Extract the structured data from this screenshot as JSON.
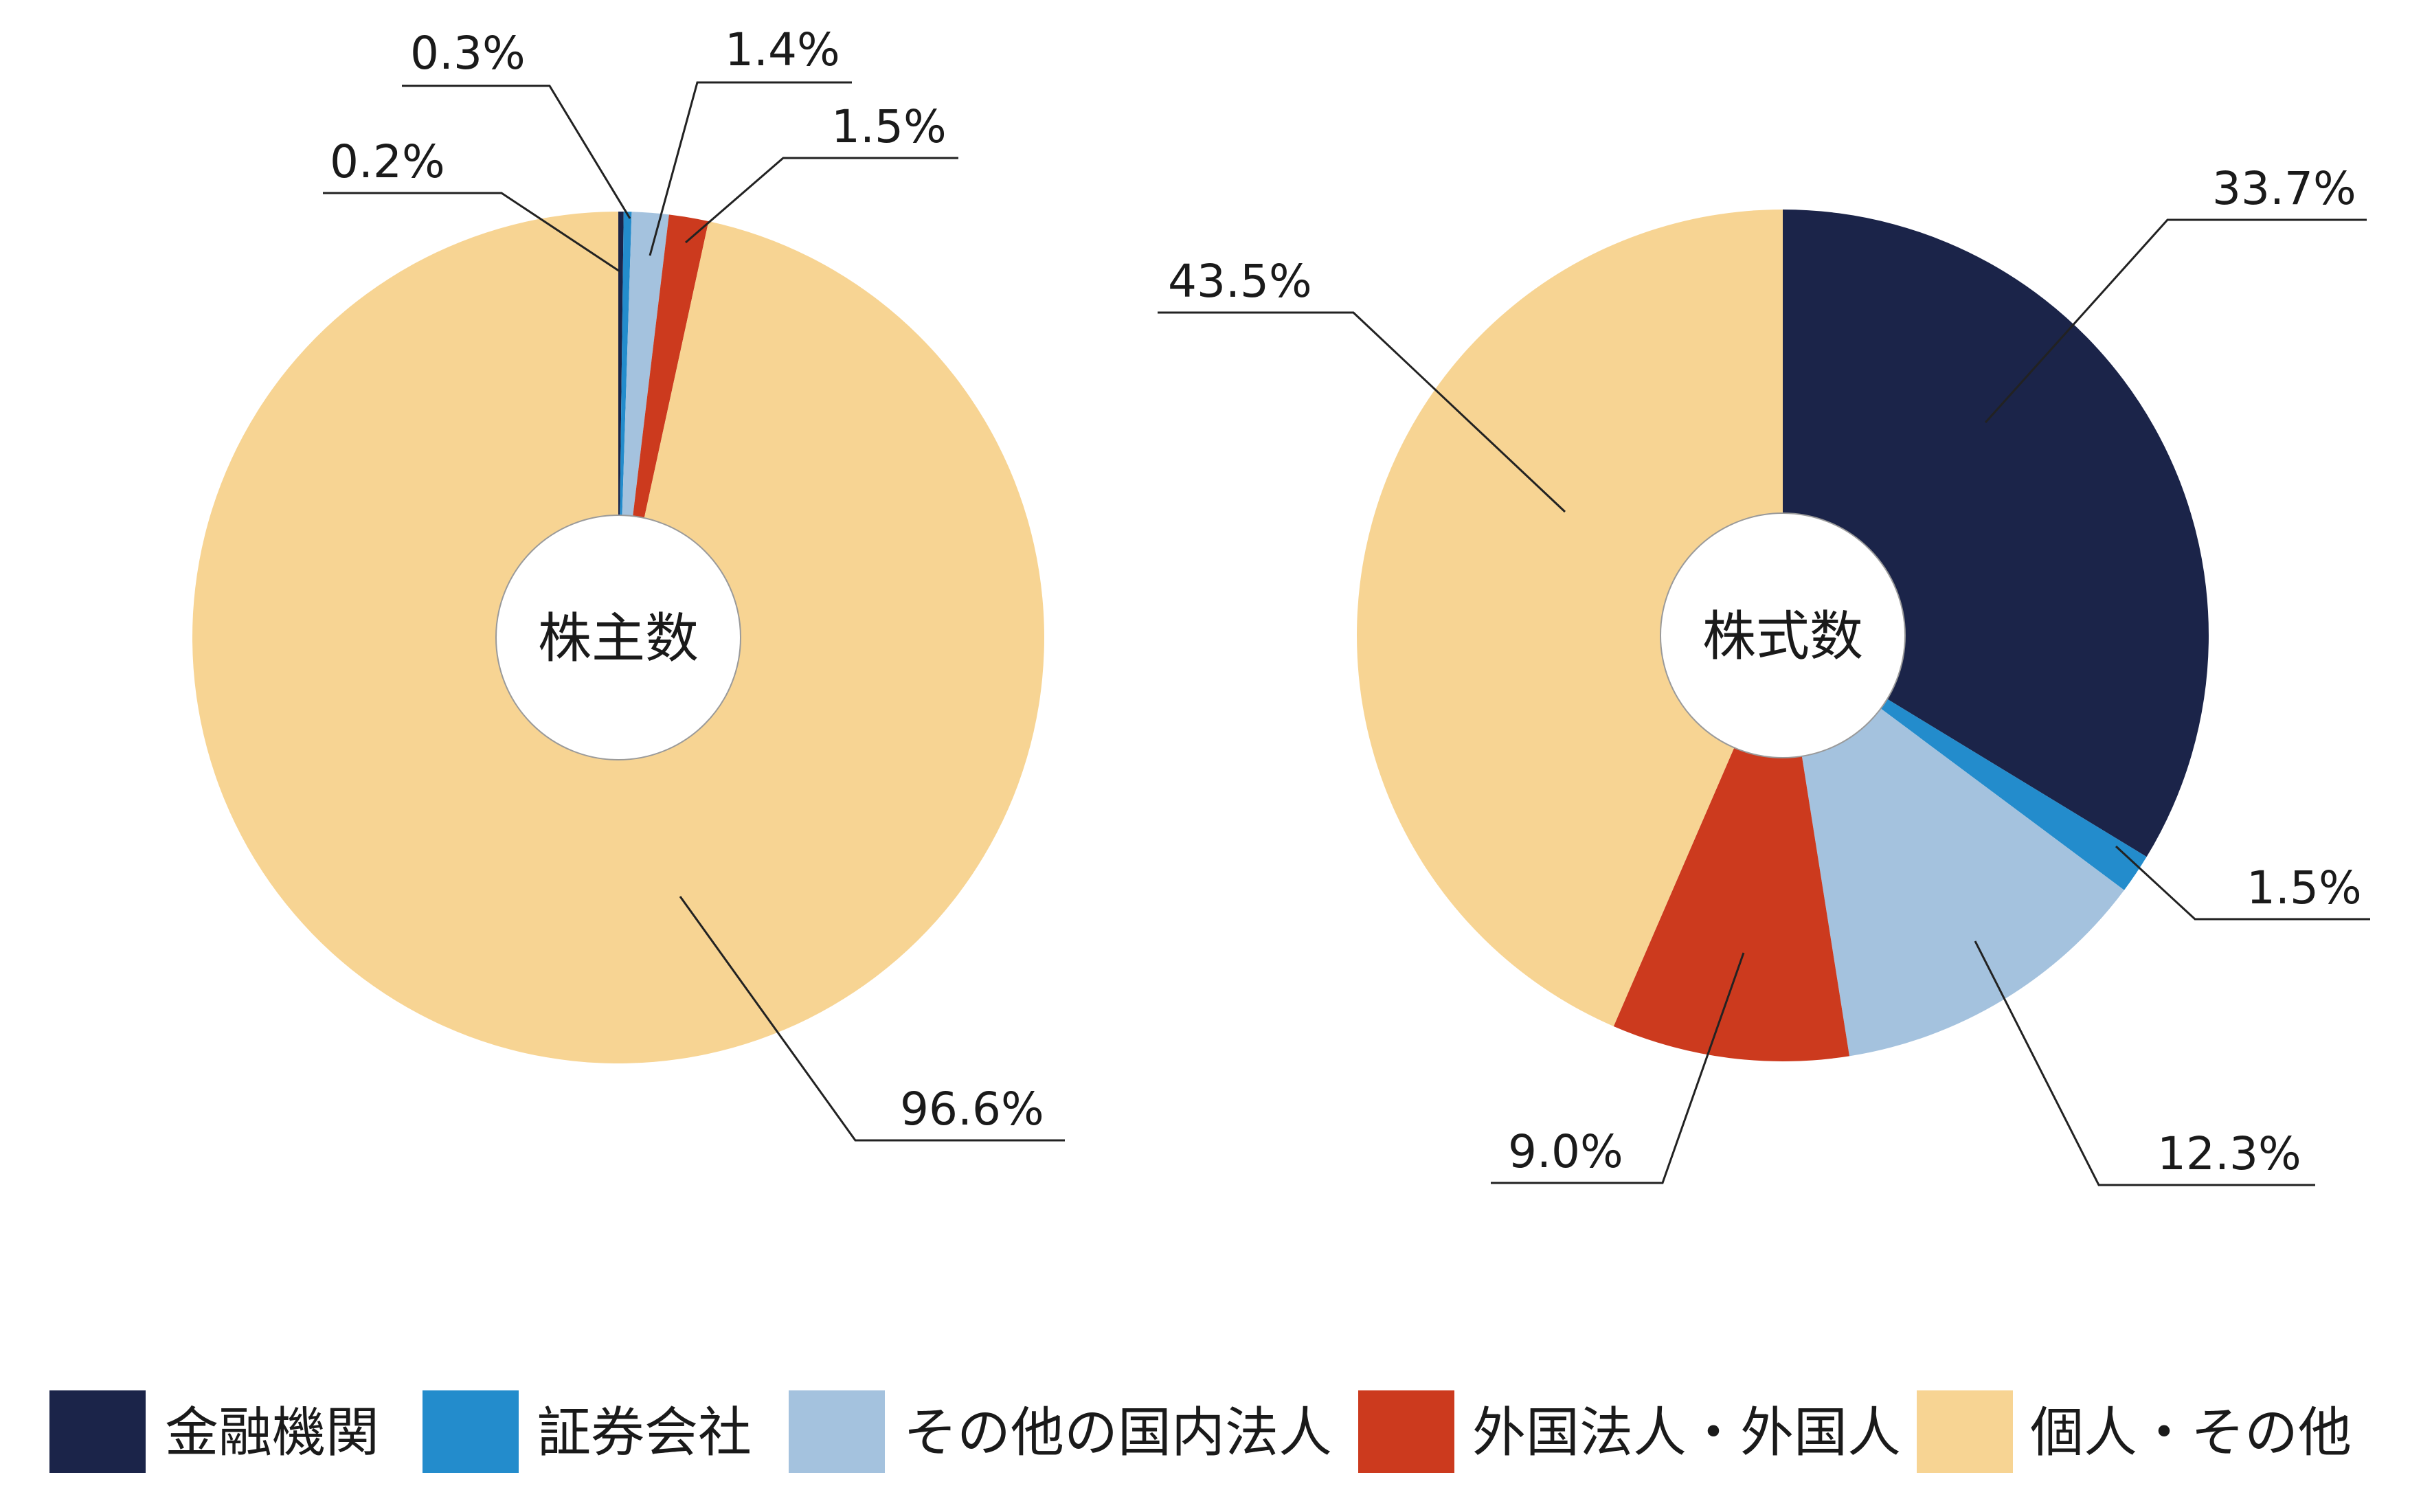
{
  "chart_data": [
    {
      "type": "pie",
      "variant": "donut",
      "title": "",
      "center_label": "株主数",
      "categories": [
        "金融機関",
        "証券会社",
        "その他の国内法人",
        "外国法人・外国人",
        "個人・その他"
      ],
      "values": [
        0.2,
        0.3,
        1.4,
        1.5,
        96.6
      ],
      "labels": [
        "0.2%",
        "0.3%",
        "1.4%",
        "1.5%",
        "96.6%"
      ],
      "start": "12 o'clock",
      "direction": "clockwise"
    },
    {
      "type": "pie",
      "variant": "donut",
      "title": "",
      "center_label": "株式数",
      "categories": [
        "金融機関",
        "証券会社",
        "その他の国内法人",
        "外国法人・外国人",
        "個人・その他"
      ],
      "values": [
        33.7,
        1.5,
        12.3,
        9.0,
        43.5
      ],
      "labels": [
        "33.7%",
        "1.5%",
        "12.3%",
        "9.0%",
        "43.5%"
      ],
      "start": "12 o'clock",
      "direction": "clockwise"
    }
  ],
  "legend": {
    "placement": "bottom",
    "items": [
      {
        "label": "金融機関",
        "color": "#1b2449"
      },
      {
        "label": "証券会社",
        "color": "#238ccc"
      },
      {
        "label": "その他の国内法人",
        "color": "#a4c2de"
      },
      {
        "label": "外国法人・外国人",
        "color": "#cc3a1e"
      },
      {
        "label": "個人・その他",
        "color": "#f7d493"
      }
    ]
  }
}
